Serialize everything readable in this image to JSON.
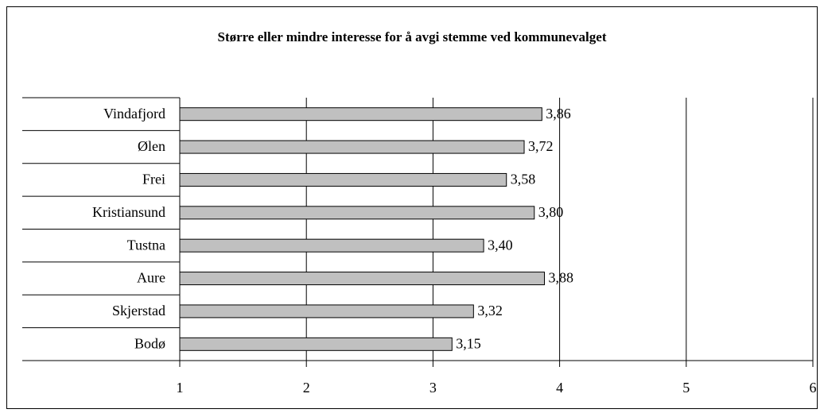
{
  "chart_data": {
    "type": "barh",
    "title": "Større eller mindre interesse for å avgi stemme ved kommunevalget",
    "categories": [
      "Vindafjord",
      "Ølen",
      "Frei",
      "Kristiansund",
      "Tustna",
      "Aure",
      "Skjerstad",
      "Bodø"
    ],
    "values": [
      3.86,
      3.72,
      3.58,
      3.8,
      3.4,
      3.88,
      3.32,
      3.15
    ],
    "value_labels": [
      "3,86",
      "3,72",
      "3,58",
      "3,80",
      "3,40",
      "3,88",
      "3,32",
      "3,15"
    ],
    "color": "#c0c0c0",
    "xlim": [
      1,
      6
    ],
    "xticks": [
      1,
      2,
      3,
      4,
      5,
      6
    ],
    "grid": true
  }
}
